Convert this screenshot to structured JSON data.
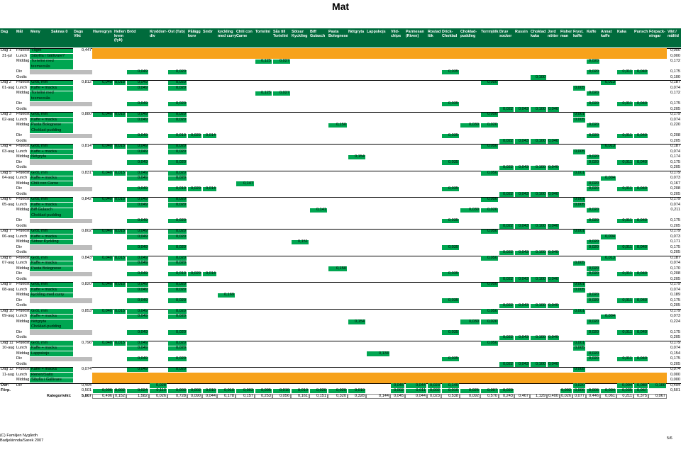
{
  "header": {
    "title": "Mat"
  },
  "columns": [
    [
      "Dag"
    ],
    [
      "Mål"
    ],
    [
      "Meny"
    ],
    [
      "Saknas 0"
    ],
    [
      "Dags",
      "Vikt"
    ],
    [
      "Havregryn"
    ],
    [
      "Hellen",
      "krem",
      "(fylt)"
    ],
    [
      "Bröd"
    ],
    [
      "Kryddorr-",
      "div"
    ],
    [
      "Ost (Tub)"
    ],
    [
      "Pålägg",
      "korv"
    ],
    [
      "Smör"
    ],
    [
      "kyckling",
      "med curry"
    ],
    [
      "Chili con",
      "Carne"
    ],
    [
      "Tortelini"
    ],
    [
      "Sås till",
      "Tortelini"
    ],
    [
      "Sötsur",
      "Kyckling"
    ],
    [
      "Biff",
      "Gulasch"
    ],
    [
      "Pasta",
      "Bolognese"
    ],
    [
      "Nötgryta"
    ],
    [
      "Lappskojs"
    ],
    [
      "Vild-",
      "chips"
    ],
    [
      "Parmesan",
      "(Riven)"
    ],
    [
      "Rostad",
      "lök"
    ],
    [
      "Drick-",
      "Choklad"
    ],
    [
      "Choklad-",
      "pudding"
    ],
    [
      "Torrmjölk"
    ],
    [
      "Druv",
      "socker"
    ],
    [
      "Russin"
    ],
    [
      "Choklad",
      "kaka"
    ],
    [
      "Jord",
      "nötter"
    ],
    [
      "Fisher",
      "man"
    ],
    [
      "Fryst.",
      "kaffe"
    ],
    [
      "Kaffe"
    ],
    [
      "Annat",
      "kaffe"
    ],
    [
      "Kaka"
    ],
    [
      "Punsch"
    ],
    [
      "Förpack-",
      "ningar"
    ],
    [
      "Vikt /",
      "måltid"
    ]
  ],
  "days": [
    {
      "day": "Dag 1",
      "date": "31-jul",
      "rows": [
        {
          "meal": "Frukost",
          "menu": [
            "Tåget"
          ],
          "weight": "0,447",
          "cells": {},
          "total": "0,000",
          "color": "#f7a21b"
        },
        {
          "meal": "Lunch",
          "menu": [
            "Sibyllla i Gällivare?"
          ],
          "cells": {},
          "total": "0,000",
          "color": "#f7a21b"
        },
        {
          "meal": "Middag",
          "menu": [
            "Tortelini med",
            "texmexsås"
          ],
          "cells": {
            "9": "0,125",
            "10": "0,027",
            "28": "0,020"
          },
          "total": "0,172"
        },
        {
          "meal": "Div",
          "cells": {
            "2": "0,049",
            "4": "0,020",
            "19": "0,035",
            "28": "0,020",
            "30": "0,011",
            "31": "0,040"
          },
          "total": "0,175"
        },
        {
          "meal": "Godis",
          "cells": {
            "24": "0,100"
          },
          "total": "0,100"
        }
      ]
    },
    {
      "day": "Dag 2",
      "date": "01-aug",
      "rows": [
        {
          "meal": "Frukost",
          "menu": [
            "Gröt, mm"
          ],
          "weight": "0,812",
          "cells": {
            "0": "0,040",
            "1": "0,015",
            "2": "0,049",
            "4": "0,020",
            "21": "0,050",
            "29": "0,013"
          },
          "total": "0,187"
        },
        {
          "meal": "Lunch",
          "menu": [
            "Kaffe + macka"
          ],
          "cells": {
            "2": "0,049",
            "4": "0,020",
            "27": "0,005"
          },
          "total": "0,074"
        },
        {
          "meal": "Middag",
          "menu": [
            "Tortelini med",
            "texmexsås"
          ],
          "cells": {
            "9": "0,125",
            "10": "0,027",
            "28": "0,020"
          },
          "total": "0,172"
        },
        {
          "meal": "Div",
          "cells": {
            "2": "0,049",
            "4": "0,020",
            "19": "0,035",
            "28": "0,020",
            "30": "0,011",
            "31": "0,040"
          },
          "total": "0,175"
        },
        {
          "meal": "Godis",
          "cells": {
            "22": "0,022",
            "23": "0,043",
            "24": "0,100",
            "25": "0,040"
          },
          "total": "0,205"
        }
      ]
    },
    {
      "day": "Dag 3",
      "date": "02-aug",
      "rows": [
        {
          "meal": "Frukost",
          "menu": [
            "Gröt, mm"
          ],
          "weight": "0,880",
          "cells": {
            "0": "0,040",
            "1": "0,015",
            "2": "0,049",
            "4": "0,020",
            "21": "0,050",
            "27": "0,001"
          },
          "total": "0,179"
        },
        {
          "meal": "Lunch",
          "menu": [
            "Kaffe + macka"
          ],
          "cells": {
            "2": "0,049",
            "4": "0,020",
            "27": "0,005"
          },
          "total": "0,074"
        },
        {
          "meal": "Middag",
          "menu": [
            "Pasta Bolognese",
            "Choklad-pudding"
          ],
          "cells": {
            "13": "0,150",
            "20": "0,030",
            "21": "0,020",
            "28": "0,020"
          },
          "total": "0,220"
        },
        {
          "meal": "Div",
          "cells": {
            "2": "0,049",
            "4": "0,010",
            "5": "0,029",
            "6": "0,014",
            "19": "0,035",
            "28": "0,020",
            "30": "0,011",
            "31": "0,040"
          },
          "total": "0,208"
        },
        {
          "meal": "Godis",
          "cells": {
            "22": "0,022",
            "23": "0,043",
            "24": "0,100",
            "25": "0,040"
          },
          "total": "0,205"
        }
      ]
    },
    {
      "day": "Dag 4",
      "date": "03-aug",
      "rows": [
        {
          "meal": "Frukost",
          "menu": [
            "Gröt, mm"
          ],
          "weight": "0,814",
          "cells": {
            "0": "0,040",
            "1": "0,015",
            "2": "0,049",
            "4": "0,020",
            "21": "0,050",
            "29": "0,013"
          },
          "total": "0,187"
        },
        {
          "meal": "Lunch",
          "menu": [
            "Kaffe + macka"
          ],
          "cells": {
            "2": "0,049",
            "4": "0,020",
            "27": "0,005"
          },
          "total": "0,074"
        },
        {
          "meal": "Middag",
          "menu": [
            "Nötgryta"
          ],
          "cells": {
            "14": "0,154",
            "28": "0,020"
          },
          "total": "0,174"
        },
        {
          "meal": "Div",
          "cells": {
            "2": "0,049",
            "4": "0,020",
            "19": "0,035",
            "28": "0,020",
            "30": "0,011",
            "31": "0,040"
          },
          "total": "0,175"
        },
        {
          "meal": "Godis",
          "cells": {
            "22": "0,022",
            "23": "0,043",
            "24": "0,100",
            "25": "0,040"
          },
          "total": "0,205"
        }
      ]
    },
    {
      "day": "Dag 5",
      "date": "04-aug",
      "rows": [
        {
          "meal": "Frukost",
          "menu": [
            "Gröt, mm"
          ],
          "weight": "0,831",
          "cells": {
            "0": "0,040",
            "1": "0,015",
            "2": "0,049",
            "4": "0,020",
            "21": "0,050",
            "27": "0,001"
          },
          "total": "0,179"
        },
        {
          "meal": "Lunch",
          "menu": [
            "Kaffe + macka"
          ],
          "cells": {
            "2": "0,049",
            "4": "0,020",
            "29": "0,004"
          },
          "total": "0,073"
        },
        {
          "meal": "Middag",
          "menu": [
            "Chili con Carne"
          ],
          "cells": {
            "8": "0,147",
            "28": "0,020"
          },
          "total": "0,167"
        },
        {
          "meal": "Div",
          "cells": {
            "2": "0,049",
            "4": "0,010",
            "5": "0,029",
            "6": "0,014",
            "19": "0,035",
            "28": "0,020",
            "30": "0,011",
            "31": "0,040"
          },
          "total": "0,208"
        },
        {
          "meal": "Godis",
          "cells": {
            "22": "0,022",
            "23": "0,043",
            "24": "0,100",
            "25": "0,040"
          },
          "total": "0,205"
        }
      ]
    },
    {
      "day": "Dag 6",
      "date": "05-aug",
      "rows": [
        {
          "meal": "Frukost",
          "menu": [
            "Gröt, mm"
          ],
          "weight": "0,842",
          "cells": {
            "0": "0,040",
            "1": "0,015",
            "2": "0,049",
            "4": "0,020",
            "21": "0,050",
            "27": "0,001"
          },
          "total": "0,179"
        },
        {
          "meal": "Lunch",
          "menu": [
            "Kaffe + macka"
          ],
          "cells": {
            "2": "0,049",
            "4": "0,020",
            "27": "0,005"
          },
          "total": "0,074"
        },
        {
          "meal": "Middag",
          "menu": [
            "Biff Gulasch",
            "Choklad-pudding"
          ],
          "cells": {
            "12": "0,141",
            "20": "0,030",
            "21": "0,020",
            "28": "0,020"
          },
          "total": "0,211"
        },
        {
          "meal": "Div",
          "cells": {
            "2": "0,049",
            "4": "0,020",
            "19": "0,035",
            "28": "0,020",
            "30": "0,011",
            "31": "0,040"
          },
          "total": "0,175"
        },
        {
          "meal": "Godis",
          "cells": {
            "22": "0,022",
            "23": "0,043",
            "24": "0,100",
            "25": "0,040"
          },
          "total": "0,205"
        }
      ]
    },
    {
      "day": "Dag 7",
      "date": "06-aug",
      "rows": [
        {
          "meal": "Frukost",
          "menu": [
            "Gröt, mm"
          ],
          "weight": "0,802",
          "cells": {
            "0": "0,040",
            "1": "0,015",
            "2": "0,049",
            "4": "0,020",
            "21": "0,050",
            "27": "0,001"
          },
          "total": "0,179"
        },
        {
          "meal": "Lunch",
          "menu": [
            "Kaffe + macka"
          ],
          "cells": {
            "2": "0,049",
            "4": "0,020",
            "29": "0,004"
          },
          "total": "0,073"
        },
        {
          "meal": "Middag",
          "menu": [
            "Sötsur Kyckling"
          ],
          "cells": {
            "11": "0,151",
            "28": "0,020"
          },
          "total": "0,171"
        },
        {
          "meal": "Div",
          "cells": {
            "2": "0,049",
            "4": "0,020",
            "19": "0,035",
            "28": "0,020",
            "30": "0,011",
            "31": "0,040"
          },
          "total": "0,175"
        },
        {
          "meal": "Godis",
          "cells": {
            "22": "0,022",
            "23": "0,043",
            "24": "0,100",
            "25": "0,040"
          },
          "total": "0,205"
        }
      ]
    },
    {
      "day": "Dag 8",
      "date": "07-aug",
      "rows": [
        {
          "meal": "Frukost",
          "menu": [
            "Gröt, mm"
          ],
          "weight": "0,843",
          "cells": {
            "0": "0,040",
            "1": "0,015",
            "2": "0,049",
            "4": "0,020",
            "21": "0,050",
            "29": "0,013"
          },
          "total": "0,187"
        },
        {
          "meal": "Lunch",
          "menu": [
            "Kaffe + macka"
          ],
          "cells": {
            "2": "0,049",
            "4": "0,020",
            "27": "0,005"
          },
          "total": "0,074"
        },
        {
          "meal": "Middag",
          "menu": [
            "Pasta Bolognese"
          ],
          "cells": {
            "13": "0,150",
            "28": "0,020"
          },
          "total": "0,170"
        },
        {
          "meal": "Div",
          "cells": {
            "2": "0,049",
            "4": "0,010",
            "5": "0,029",
            "6": "0,014",
            "19": "0,035",
            "28": "0,020",
            "30": "0,011",
            "31": "0,040"
          },
          "total": "0,208"
        },
        {
          "meal": "Godis",
          "cells": {
            "22": "0,022",
            "23": "0,043",
            "24": "0,100",
            "25": "0,040"
          },
          "total": "0,205"
        }
      ]
    },
    {
      "day": "Dag 9",
      "date": "08-aug",
      "rows": [
        {
          "meal": "Frukost",
          "menu": [
            "Gröt, mm"
          ],
          "weight": "0,820",
          "cells": {
            "0": "0,040",
            "1": "0,015",
            "2": "0,049",
            "4": "0,020",
            "21": "0,050",
            "27": "0,001"
          },
          "total": "0,179"
        },
        {
          "meal": "Lunch",
          "menu": [
            "Kaffe + macka"
          ],
          "cells": {
            "2": "0,049",
            "4": "0,020",
            "27": "0,005"
          },
          "total": "0,074"
        },
        {
          "meal": "Middag",
          "menu": [
            "kyckling med curry"
          ],
          "cells": {
            "7": "0,169",
            "28": "0,020"
          },
          "total": "0,189"
        },
        {
          "meal": "Div",
          "cells": {
            "2": "0,049",
            "4": "0,020",
            "19": "0,035",
            "28": "0,020",
            "30": "0,011",
            "31": "0,040"
          },
          "total": "0,175"
        },
        {
          "meal": "Godis",
          "cells": {
            "22": "0,022",
            "23": "0,043",
            "24": "0,100",
            "25": "0,040"
          },
          "total": "0,205"
        }
      ]
    },
    {
      "day": "Dag 10",
      "date": "09-aug",
      "rows": [
        {
          "meal": "Frukost",
          "menu": [
            "Gröt, mm"
          ],
          "weight": "0,853",
          "cells": {
            "0": "0,040",
            "1": "0,015",
            "2": "0,049",
            "4": "0,020",
            "21": "0,050",
            "27": "0,001"
          },
          "total": "0,179"
        },
        {
          "meal": "Lunch",
          "menu": [
            "Kaffe + macka"
          ],
          "cells": {
            "2": "0,049",
            "4": "0,020",
            "29": "0,004"
          },
          "total": "0,073"
        },
        {
          "meal": "Middag",
          "menu": [
            "Nötgryta",
            "Choklad-pudding"
          ],
          "cells": {
            "14": "0,154",
            "20": "0,030",
            "21": "0,020",
            "28": "0,020"
          },
          "total": "0,224"
        },
        {
          "meal": "Div",
          "cells": {
            "2": "0,049",
            "4": "0,020",
            "19": "0,035",
            "28": "0,020",
            "30": "0,011",
            "31": "0,040"
          },
          "total": "0,175"
        },
        {
          "meal": "Godis",
          "cells": {
            "22": "0,022",
            "23": "0,043",
            "24": "0,100",
            "25": "0,040"
          },
          "total": "0,205"
        }
      ]
    },
    {
      "day": "Dag 11",
      "date": "10-aug",
      "rows": [
        {
          "meal": "Frukost",
          "menu": [
            "Gröt, mm"
          ],
          "weight": "0,796",
          "cells": {
            "0": "0,040",
            "1": "0,015",
            "2": "0,049",
            "4": "0,020",
            "21": "0,050",
            "27": "0,001"
          },
          "total": "0,179"
        },
        {
          "meal": "Lunch",
          "menu": [
            "Kaffe + macka"
          ],
          "cells": {
            "2": "0,049",
            "4": "0,020",
            "27": "0,005"
          },
          "total": "0,074"
        },
        {
          "meal": "Middag",
          "menu": [
            "Lappskojs"
          ],
          "cells": {
            "15": "0,134",
            "28": "0,020"
          },
          "total": "0,154"
        },
        {
          "meal": "Div",
          "cells": {
            "2": "0,049",
            "4": "0,020",
            "19": "0,035",
            "28": "0,020",
            "30": "0,011",
            "31": "0,040"
          },
          "total": "0,175"
        },
        {
          "meal": "Godis",
          "cells": {
            "22": "0,022",
            "23": "0,043",
            "24": "0,100",
            "25": "0,040"
          },
          "total": "0,205"
        }
      ]
    },
    {
      "day": "Dag 12",
      "date": "11-aug",
      "rows": [
        {
          "meal": "Frukost",
          "menu": [
            "Kaffe + macka"
          ],
          "weight": "0,074",
          "cells": {
            "2": "0,049",
            "4": "0,020",
            "27": "0,005"
          },
          "total": "0,074"
        },
        {
          "meal": "Lunch",
          "menu": [
            "Renen/Salto"
          ],
          "cells": {},
          "total": "0,000",
          "color": "#f7a21b"
        },
        {
          "meal": "Middag",
          "menu": [
            "Sibylla i Gällivare"
          ],
          "cells": {},
          "total": "0,000",
          "color": "#f7a21b"
        }
      ]
    }
  ],
  "summary": [
    {
      "label": "Övr:",
      "meal": "Div",
      "weight": "0,494",
      "cells": {
        "3": "0,028",
        "16": "0,045",
        "17": "0,044",
        "18": "0,023",
        "19": "0,140",
        "27": "0,020",
        "30": "0,004",
        "31": "0,080",
        "32": "0,100"
      },
      "total": "0,494"
    },
    {
      "label": "Förp.",
      "weight": "0,501",
      "cells": {
        "0": "0,006",
        "1": "0,002",
        "2": "0,024",
        "3": "0,110",
        "4": "0,003",
        "5": "0,002",
        "6": "0,010",
        "7": "0,010",
        "8": "0,003",
        "9": "0,005",
        "10": "0,010",
        "11": "0,010",
        "12": "0,020",
        "13": "0,020",
        "14": "0,010",
        "16": "0,002",
        "17": "0,011",
        "18": "0,002",
        "19": "0,010",
        "20": "0,025",
        "21": "0,007",
        "22": "0,029",
        "26": "0,002",
        "27": "0,006",
        "28": "0,006",
        "29": "0,004",
        "30": "0,035",
        "31": "0,067"
      },
      "total": "0,501"
    },
    {
      "label": "Kategorivikt:",
      "weight": "5,807",
      "cells": [
        "0,406",
        "0,152",
        "1,582",
        "0,026",
        "0,728",
        "0,090",
        "0,044",
        "0,178",
        "0,157",
        "0,253",
        "0,056",
        "0,161",
        "0,151",
        "0,320",
        "0,328",
        "0,144",
        "0,045",
        "0,044",
        "0,023",
        "0,538",
        "0,092",
        "0,570",
        "0,243",
        "0,467",
        "1,129",
        "0,400",
        "0,026",
        "0,077",
        "0,446",
        "0,061",
        "0,211",
        "0,375",
        "0,067"
      ]
    }
  ],
  "footer": {
    "copyright": "(C) Familjen Nygårdh",
    "place": "Badjelánnda/Sarek 2007",
    "page": "5/6"
  }
}
